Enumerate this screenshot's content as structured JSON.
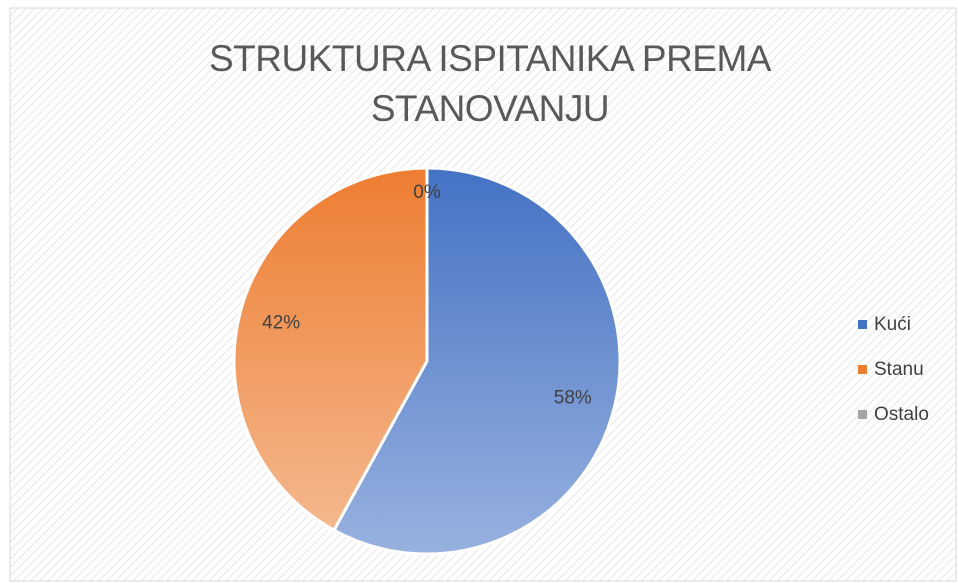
{
  "chart_data": {
    "type": "pie",
    "title": "STRUKTURA ISPITANIKA PREMA STANOVANJU",
    "categories": [
      "Kući",
      "Stanu",
      "Ostalo"
    ],
    "values": [
      58,
      42,
      0
    ],
    "value_labels": [
      "58%",
      "42%",
      "0%"
    ],
    "colors": [
      "#4472c4",
      "#ed7d31",
      "#a5a5a5"
    ],
    "legend": "right"
  }
}
